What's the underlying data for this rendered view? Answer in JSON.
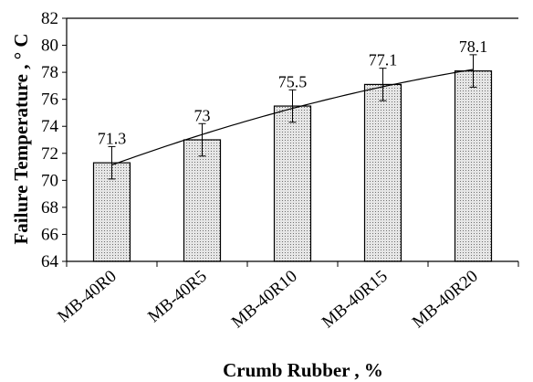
{
  "chart_data": {
    "type": "bar",
    "title": "",
    "xlabel": "Crumb Rubber , %",
    "ylabel": "Failure Temperature , ° C",
    "categories": [
      "MB-40R0",
      "MB-40R5",
      "MB-40R10",
      "MB-40R15",
      "MB-40R20"
    ],
    "values": [
      71.3,
      73,
      75.5,
      77.1,
      78.1
    ],
    "data_labels": [
      "71.3",
      "73",
      "75.5",
      "77.1",
      "78.1"
    ],
    "error": [
      1.2,
      1.2,
      1.2,
      1.2,
      1.2
    ],
    "ylim": [
      64,
      82
    ],
    "yticks": [
      64,
      66,
      68,
      70,
      72,
      74,
      76,
      78,
      80,
      82
    ],
    "trendline": "polynomial",
    "grid": false,
    "legend": "none",
    "colors": {
      "bar_fill": "#e6e6e6",
      "bar_dots": "#707070",
      "bar_stroke": "#000000",
      "axis": "#000000",
      "trendline": "#000000"
    }
  }
}
